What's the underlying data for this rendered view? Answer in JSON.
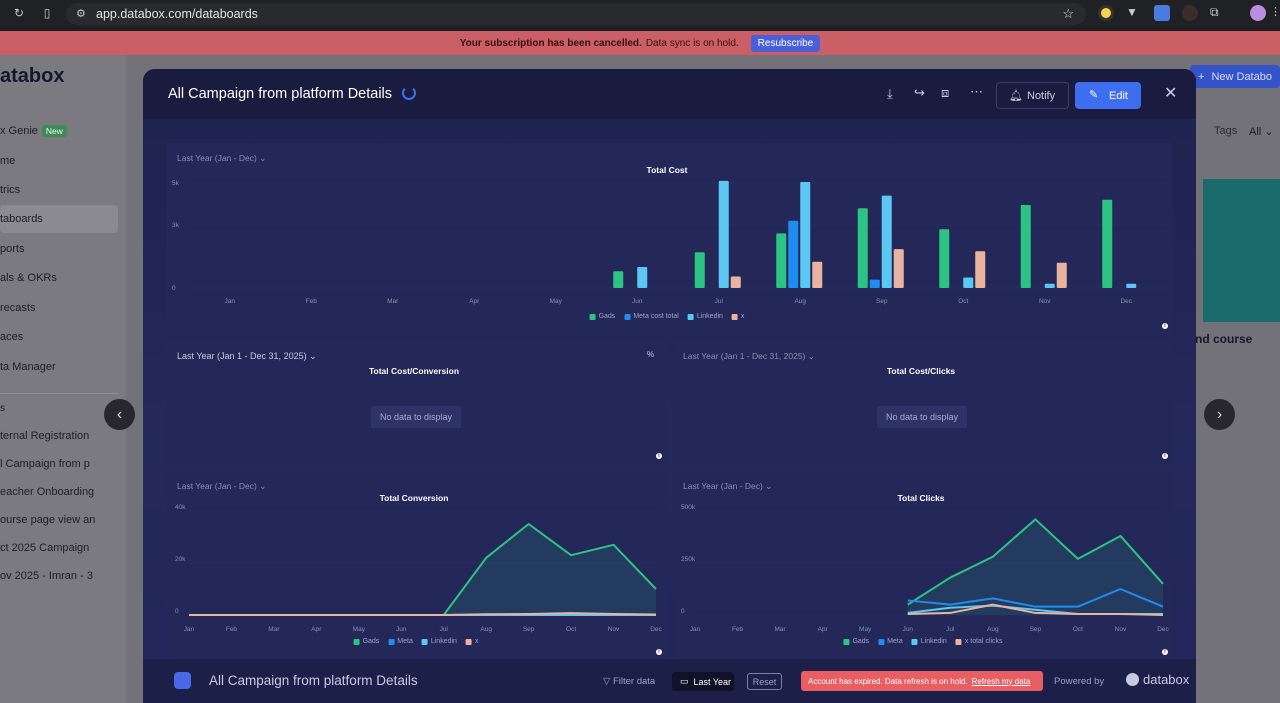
{
  "browser": {
    "url": "app.databox.com/databoards"
  },
  "banner": {
    "strong": "Your subscription has been cancelled.",
    "text": "Data sync is on hold.",
    "button": "Resubscribe"
  },
  "sidebar": {
    "brand": "atabox",
    "items": [
      {
        "label": "x Genie",
        "badge": "New"
      },
      {
        "label": "me"
      },
      {
        "label": "trics"
      },
      {
        "label": "taboards"
      },
      {
        "label": "ports"
      },
      {
        "label": "als & OKRs"
      },
      {
        "label": "recasts"
      },
      {
        "label": "aces"
      },
      {
        "label": "ta Manager"
      },
      {
        "label": "s"
      },
      {
        "label": "ternal Registration"
      },
      {
        "label": "l Campaign from p"
      },
      {
        "label": "eacher Onboarding"
      },
      {
        "label": "ourse page view an"
      },
      {
        "label": "ct 2025 Campaign"
      },
      {
        "label": "ov 2025 - Imran - 3"
      }
    ]
  },
  "right": {
    "new_button": "New Databo",
    "tags_label": "Tags",
    "tags_value": "All",
    "card_label": "nd course"
  },
  "modal": {
    "title": "All Campaign from platform Details",
    "notify": "Notify",
    "edit": "Edit",
    "panels": {
      "total_cost": {
        "date": "Last Year (Jan - Dec)",
        "title": "Total Cost"
      },
      "cost_conversion": {
        "date": "Last Year (Jan 1 - Dec 31, 2025)",
        "title": "Total Cost/Conversion",
        "nodata": "No data to display"
      },
      "cost_clicks": {
        "date": "Last Year (Jan 1 - Dec 31, 2025)",
        "title": "Total Cost/Clicks",
        "nodata": "No data to display"
      },
      "total_conversion": {
        "date": "Last Year (Jan - Dec)",
        "title": "Total Conversion"
      },
      "total_clicks": {
        "date": "Last Year (Jan - Dec)",
        "title": "Total Clicks"
      }
    },
    "footer": {
      "title": "All Campaign from platform Details",
      "filter": "Filter data",
      "last_year": "Last Year",
      "reset": "Reset",
      "expired": "Account has expired. Data refresh is on hold.",
      "refresh": "Refresh my data",
      "powered": "Powered by",
      "brand": "databox"
    }
  },
  "colors": {
    "gads": "#2cc483",
    "meta": "#1e8cf0",
    "linkedin": "#5bc7f2",
    "x": "#e8b49f"
  },
  "chart_data": [
    {
      "type": "bar",
      "title": "Total Cost",
      "categories": [
        "Jan",
        "Feb",
        "Mar",
        "Apr",
        "May",
        "Jun",
        "Jul",
        "Aug",
        "Sep",
        "Oct",
        "Nov",
        "Dec"
      ],
      "ylim": [
        0,
        5000
      ],
      "yticks": [
        "0",
        "3k",
        "5k"
      ],
      "series": [
        {
          "name": "Gads",
          "values": [
            0,
            0,
            0,
            0,
            0,
            800,
            1700,
            2600,
            3800,
            2800,
            3950,
            4200
          ]
        },
        {
          "name": "Meta cost total",
          "values": [
            0,
            0,
            0,
            0,
            0,
            0,
            0,
            3200,
            400,
            0,
            0,
            0
          ]
        },
        {
          "name": "Linkedin",
          "values": [
            0,
            0,
            0,
            0,
            0,
            1000,
            5100,
            5050,
            4400,
            500,
            200,
            200
          ]
        },
        {
          "name": "x",
          "values": [
            0,
            0,
            0,
            0,
            0,
            0,
            550,
            1250,
            1850,
            1750,
            1200,
            0
          ]
        }
      ]
    },
    {
      "type": "area",
      "title": "Total Conversion",
      "categories": [
        "Jan",
        "Feb",
        "Mar",
        "Apr",
        "May",
        "Jun",
        "Jul",
        "Aug",
        "Sep",
        "Oct",
        "Nov",
        "Dec"
      ],
      "ylim": [
        0,
        40000
      ],
      "yticks": [
        "0",
        "20k",
        "40k"
      ],
      "series": [
        {
          "name": "Gads",
          "values": [
            0,
            0,
            0,
            0,
            0,
            0,
            0,
            22000,
            35000,
            23000,
            27000,
            10000
          ]
        },
        {
          "name": "Meta",
          "values": [
            0,
            0,
            0,
            0,
            0,
            0,
            0,
            0,
            0,
            0,
            0,
            0
          ]
        },
        {
          "name": "Linkedin",
          "values": [
            0,
            0,
            0,
            0,
            0,
            0,
            0,
            0,
            0,
            0,
            0,
            0
          ]
        },
        {
          "name": "x",
          "values": [
            0,
            0,
            0,
            0,
            0,
            0,
            0,
            300,
            400,
            700,
            400,
            200
          ]
        }
      ]
    },
    {
      "type": "area",
      "title": "Total Clicks",
      "categories": [
        "Jan",
        "Feb",
        "Mar",
        "Apr",
        "May",
        "Jun",
        "Jul",
        "Aug",
        "Sep",
        "Oct",
        "Nov",
        "Dec"
      ],
      "ylim": [
        0,
        500000
      ],
      "yticks": [
        "0",
        "250k",
        "500k"
      ],
      "series": [
        {
          "name": "Gads",
          "values": [
            null,
            null,
            null,
            null,
            null,
            50000,
            180000,
            280000,
            460000,
            270000,
            380000,
            150000
          ]
        },
        {
          "name": "Meta",
          "values": [
            null,
            null,
            null,
            null,
            null,
            70000,
            50000,
            80000,
            40000,
            40000,
            125000,
            40000
          ]
        },
        {
          "name": "Linkedin",
          "values": [
            null,
            null,
            null,
            null,
            null,
            10000,
            35000,
            45000,
            25000,
            5000,
            5000,
            5000
          ]
        },
        {
          "name": "x total clicks",
          "values": [
            null,
            null,
            null,
            null,
            null,
            5000,
            10000,
            50000,
            10000,
            5000,
            5000,
            0
          ]
        }
      ]
    }
  ]
}
